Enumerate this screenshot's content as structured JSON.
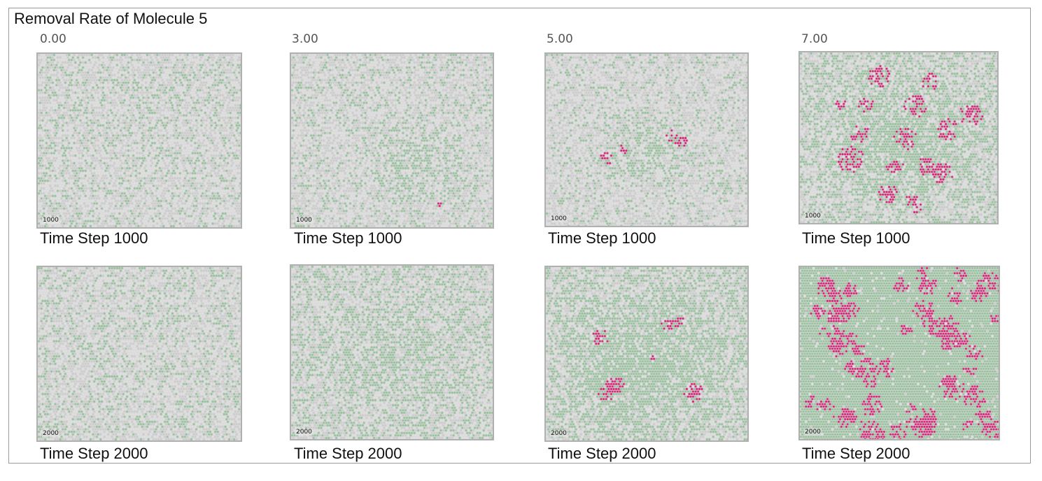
{
  "title": "Removal Rate of Molecule 5",
  "columns": [
    {
      "rate_label": "0.00"
    },
    {
      "rate_label": "3.00"
    },
    {
      "rate_label": "5.00"
    },
    {
      "rate_label": "7.00"
    }
  ],
  "rows": [
    {
      "caption": "Time Step 1000",
      "badge": "1000"
    },
    {
      "caption": "Time Step 2000",
      "badge": "2000"
    }
  ],
  "colors": {
    "background_cell": "#d9d9d9",
    "green_cell": "#8fbf95",
    "magenta_cell": "#d0106a"
  }
}
